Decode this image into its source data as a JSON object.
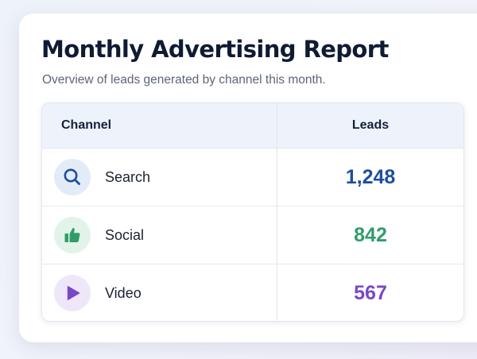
{
  "report": {
    "title": "Monthly Advertising Report",
    "subtitle": "Overview of leads generated by channel this month."
  },
  "table": {
    "headers": {
      "channel": "Channel",
      "leads": "Leads"
    },
    "rows": [
      {
        "channel": "Search",
        "leads": "1,248",
        "icon": "search-icon",
        "color": "#1d4f9c",
        "icon_bg": "#e4ebf8"
      },
      {
        "channel": "Social",
        "leads": "842",
        "icon": "thumbs-up-icon",
        "color": "#2f9d6a",
        "icon_bg": "#e2f4ea"
      },
      {
        "channel": "Video",
        "leads": "567",
        "icon": "play-icon",
        "color": "#7a47c8",
        "icon_bg": "#eee7fa"
      }
    ]
  }
}
